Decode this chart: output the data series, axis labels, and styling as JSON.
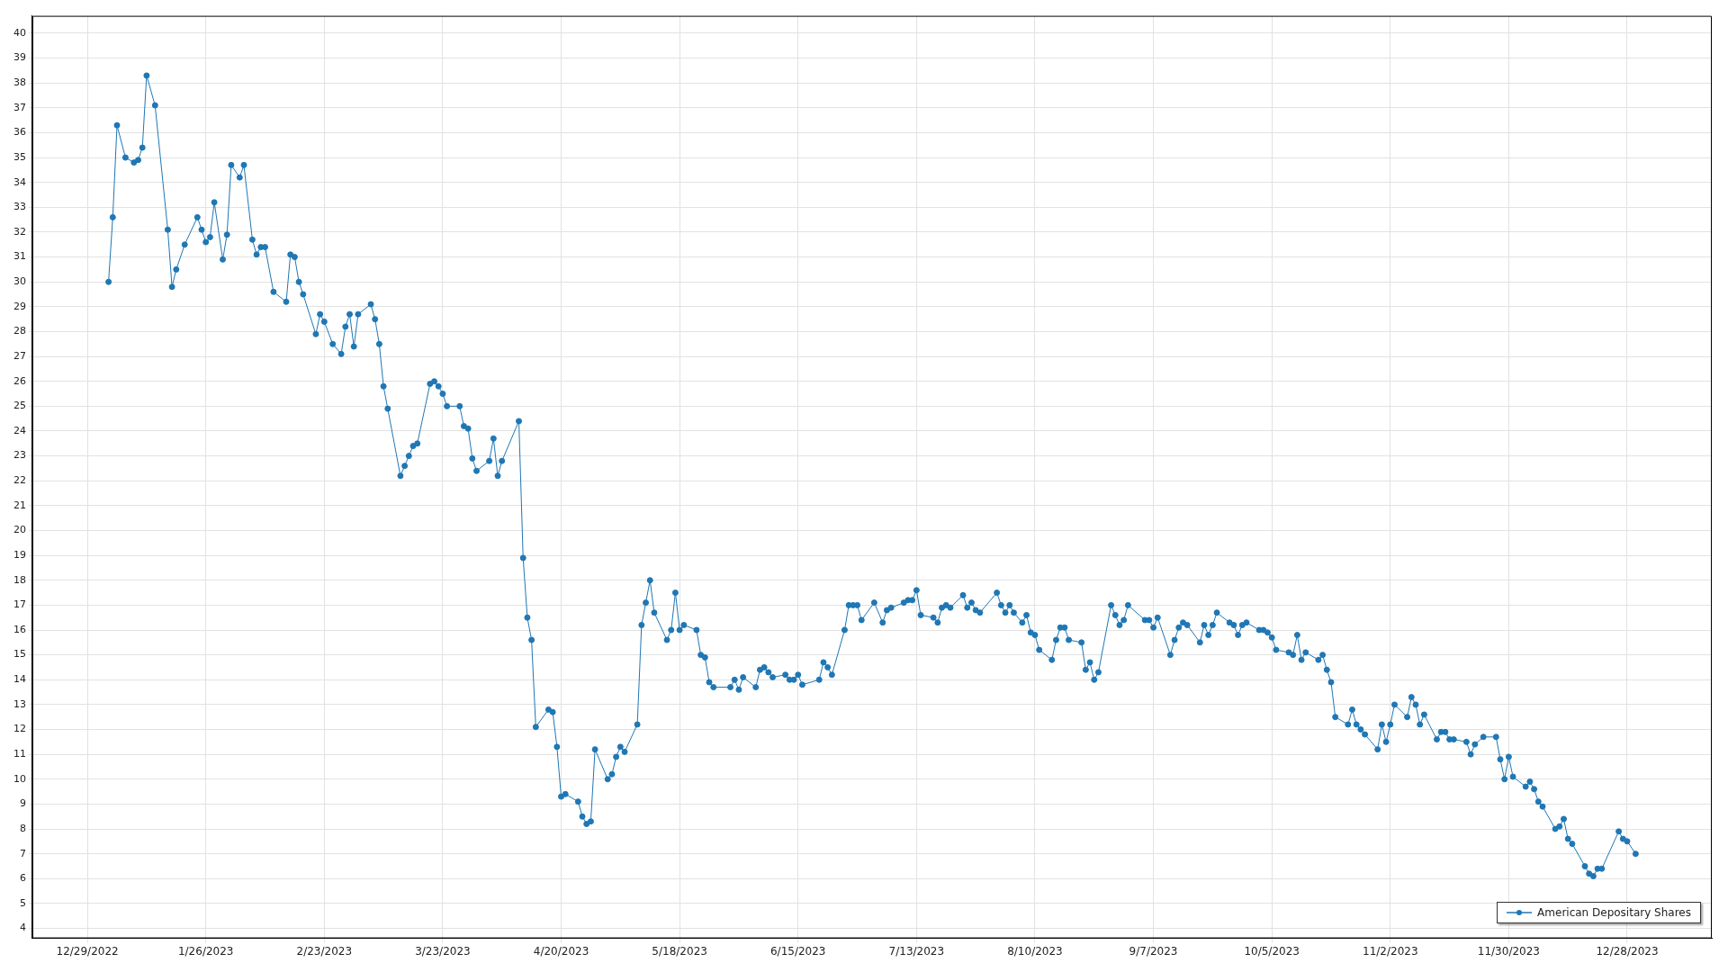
{
  "chart_data": {
    "type": "line",
    "legend": "bottom right",
    "grid": true,
    "marker": "circle",
    "xlim": [
      "2022-12-16",
      "2024-01-17"
    ],
    "xticks": [
      {
        "value": "2022-12-29",
        "label": "12/29/2022"
      },
      {
        "value": "2023-01-26",
        "label": "1/26/2023"
      },
      {
        "value": "2023-02-23",
        "label": "2/23/2023"
      },
      {
        "value": "2023-03-23",
        "label": "3/23/2023"
      },
      {
        "value": "2023-04-20",
        "label": "4/20/2023"
      },
      {
        "value": "2023-05-18",
        "label": "5/18/2023"
      },
      {
        "value": "2023-06-15",
        "label": "6/15/2023"
      },
      {
        "value": "2023-07-13",
        "label": "7/13/2023"
      },
      {
        "value": "2023-08-10",
        "label": "8/10/2023"
      },
      {
        "value": "2023-09-07",
        "label": "9/7/2023"
      },
      {
        "value": "2023-10-05",
        "label": "10/5/2023"
      },
      {
        "value": "2023-11-02",
        "label": "11/2/2023"
      },
      {
        "value": "2023-11-30",
        "label": "11/30/2023"
      },
      {
        "value": "2023-12-28",
        "label": "12/28/2023"
      }
    ],
    "ylim": [
      3.6,
      40.7
    ],
    "yticks": [
      4,
      5,
      6,
      7,
      8,
      9,
      10,
      11,
      12,
      13,
      14,
      15,
      16,
      17,
      18,
      19,
      20,
      21,
      22,
      23,
      24,
      25,
      26,
      27,
      28,
      29,
      30,
      31,
      32,
      33,
      34,
      35,
      36,
      37,
      38,
      39,
      40
    ],
    "series": [
      {
        "name": "American Depositary Shares",
        "color": "#1f77b4",
        "x": [
          "2023-01-03",
          "2023-01-04",
          "2023-01-05",
          "2023-01-07",
          "2023-01-09",
          "2023-01-10",
          "2023-01-11",
          "2023-01-12",
          "2023-01-14",
          "2023-01-17",
          "2023-01-18",
          "2023-01-19",
          "2023-01-21",
          "2023-01-24",
          "2023-01-25",
          "2023-01-26",
          "2023-01-27",
          "2023-01-28",
          "2023-01-30",
          "2023-01-31",
          "2023-02-01",
          "2023-02-03",
          "2023-02-04",
          "2023-02-06",
          "2023-02-07",
          "2023-02-08",
          "2023-02-09",
          "2023-02-11",
          "2023-02-14",
          "2023-02-15",
          "2023-02-16",
          "2023-02-17",
          "2023-02-18",
          "2023-02-21",
          "2023-02-22",
          "2023-02-23",
          "2023-02-25",
          "2023-02-27",
          "2023-02-28",
          "2023-03-01",
          "2023-03-02",
          "2023-03-03",
          "2023-03-06",
          "2023-03-07",
          "2023-03-08",
          "2023-03-09",
          "2023-03-10",
          "2023-03-13",
          "2023-03-14",
          "2023-03-15",
          "2023-03-16",
          "2023-03-17",
          "2023-03-20",
          "2023-03-21",
          "2023-03-22",
          "2023-03-23",
          "2023-03-24",
          "2023-03-27",
          "2023-03-28",
          "2023-03-29",
          "2023-03-30",
          "2023-03-31",
          "2023-04-03",
          "2023-04-04",
          "2023-04-05",
          "2023-04-06",
          "2023-04-10",
          "2023-04-11",
          "2023-04-12",
          "2023-04-13",
          "2023-04-14",
          "2023-04-17",
          "2023-04-18",
          "2023-04-19",
          "2023-04-20",
          "2023-04-21",
          "2023-04-24",
          "2023-04-25",
          "2023-04-26",
          "2023-04-27",
          "2023-04-28",
          "2023-05-01",
          "2023-05-02",
          "2023-05-03",
          "2023-05-04",
          "2023-05-05",
          "2023-05-08",
          "2023-05-09",
          "2023-05-10",
          "2023-05-11",
          "2023-05-12",
          "2023-05-15",
          "2023-05-16",
          "2023-05-17",
          "2023-05-18",
          "2023-05-19",
          "2023-05-22",
          "2023-05-23",
          "2023-05-24",
          "2023-05-25",
          "2023-05-26",
          "2023-05-30",
          "2023-05-31",
          "2023-06-01",
          "2023-06-02",
          "2023-06-05",
          "2023-06-06",
          "2023-06-07",
          "2023-06-08",
          "2023-06-09",
          "2023-06-12",
          "2023-06-13",
          "2023-06-14",
          "2023-06-15",
          "2023-06-16",
          "2023-06-20",
          "2023-06-21",
          "2023-06-22",
          "2023-06-23",
          "2023-06-26",
          "2023-06-27",
          "2023-06-28",
          "2023-06-29",
          "2023-06-30",
          "2023-07-03",
          "2023-07-05",
          "2023-07-06",
          "2023-07-07",
          "2023-07-10",
          "2023-07-11",
          "2023-07-12",
          "2023-07-13",
          "2023-07-14",
          "2023-07-17",
          "2023-07-18",
          "2023-07-19",
          "2023-07-20",
          "2023-07-21",
          "2023-07-24",
          "2023-07-25",
          "2023-07-26",
          "2023-07-27",
          "2023-07-28",
          "2023-08-01",
          "2023-08-02",
          "2023-08-03",
          "2023-08-04",
          "2023-08-05",
          "2023-08-07",
          "2023-08-08",
          "2023-08-09",
          "2023-08-10",
          "2023-08-11",
          "2023-08-14",
          "2023-08-15",
          "2023-08-16",
          "2023-08-17",
          "2023-08-18",
          "2023-08-21",
          "2023-08-22",
          "2023-08-23",
          "2023-08-24",
          "2023-08-25",
          "2023-08-28",
          "2023-08-29",
          "2023-08-30",
          "2023-08-31",
          "2023-09-01",
          "2023-09-05",
          "2023-09-06",
          "2023-09-07",
          "2023-09-08",
          "2023-09-11",
          "2023-09-12",
          "2023-09-13",
          "2023-09-14",
          "2023-09-15",
          "2023-09-18",
          "2023-09-19",
          "2023-09-20",
          "2023-09-21",
          "2023-09-22",
          "2023-09-25",
          "2023-09-26",
          "2023-09-27",
          "2023-09-28",
          "2023-09-29",
          "2023-10-02",
          "2023-10-03",
          "2023-10-04",
          "2023-10-05",
          "2023-10-06",
          "2023-10-09",
          "2023-10-10",
          "2023-10-11",
          "2023-10-12",
          "2023-10-13",
          "2023-10-16",
          "2023-10-17",
          "2023-10-18",
          "2023-10-19",
          "2023-10-20",
          "2023-10-23",
          "2023-10-24",
          "2023-10-25",
          "2023-10-26",
          "2023-10-27",
          "2023-10-30",
          "2023-10-31",
          "2023-11-01",
          "2023-11-02",
          "2023-11-03",
          "2023-11-06",
          "2023-11-07",
          "2023-11-08",
          "2023-11-09",
          "2023-11-10",
          "2023-11-13",
          "2023-11-14",
          "2023-11-15",
          "2023-11-16",
          "2023-11-17",
          "2023-11-20",
          "2023-11-21",
          "2023-11-22",
          "2023-11-24",
          "2023-11-27",
          "2023-11-28",
          "2023-11-29",
          "2023-11-30",
          "2023-12-01",
          "2023-12-04",
          "2023-12-05",
          "2023-12-06",
          "2023-12-07",
          "2023-12-08",
          "2023-12-11",
          "2023-12-12",
          "2023-12-13",
          "2023-12-14",
          "2023-12-15",
          "2023-12-18",
          "2023-12-19",
          "2023-12-20",
          "2023-12-21",
          "2023-12-22",
          "2023-12-26",
          "2023-12-27",
          "2023-12-28",
          "2023-12-30"
        ],
        "values": [
          30.0,
          32.6,
          36.3,
          35.0,
          34.8,
          34.9,
          35.4,
          38.3,
          37.1,
          32.1,
          29.8,
          30.5,
          31.5,
          32.6,
          32.1,
          31.6,
          31.8,
          33.2,
          30.9,
          31.9,
          34.7,
          34.2,
          34.7,
          31.7,
          31.1,
          31.4,
          31.4,
          29.6,
          29.2,
          31.1,
          31.0,
          30.0,
          29.5,
          27.9,
          28.7,
          28.4,
          27.5,
          27.1,
          28.2,
          28.7,
          27.4,
          28.7,
          29.1,
          28.5,
          27.5,
          25.8,
          24.9,
          22.2,
          22.6,
          23.0,
          23.4,
          23.5,
          25.9,
          26.0,
          25.8,
          25.5,
          25.0,
          25.0,
          24.2,
          24.1,
          22.9,
          22.4,
          22.8,
          23.7,
          22.2,
          22.8,
          24.4,
          18.9,
          16.5,
          15.6,
          12.1,
          12.8,
          12.7,
          11.3,
          9.3,
          9.4,
          9.1,
          8.5,
          8.2,
          8.3,
          11.2,
          10.0,
          10.2,
          10.9,
          11.3,
          11.1,
          12.2,
          16.2,
          17.1,
          18.0,
          16.7,
          15.6,
          16.0,
          17.5,
          16.0,
          16.2,
          16.0,
          15.0,
          14.9,
          13.9,
          13.7,
          13.7,
          14.0,
          13.6,
          14.1,
          13.7,
          14.4,
          14.5,
          14.3,
          14.1,
          14.2,
          14.0,
          14.0,
          14.2,
          13.8,
          14.0,
          14.7,
          14.5,
          14.2,
          16.0,
          17.0,
          17.0,
          17.0,
          16.4,
          17.1,
          16.3,
          16.8,
          16.9,
          17.1,
          17.2,
          17.2,
          17.6,
          16.6,
          16.5,
          16.3,
          16.9,
          17.0,
          16.9,
          17.4,
          16.9,
          17.1,
          16.8,
          16.7,
          17.5,
          17.0,
          16.7,
          17.0,
          16.7,
          16.3,
          16.6,
          15.9,
          15.8,
          15.2,
          14.8,
          15.6,
          16.1,
          16.1,
          15.6,
          15.5,
          14.4,
          14.7,
          14.0,
          14.3,
          17.0,
          16.6,
          16.2,
          16.4,
          17.0,
          16.4,
          16.4,
          16.1,
          16.5,
          15.0,
          15.6,
          16.1,
          16.3,
          16.2,
          15.5,
          16.2,
          15.8,
          16.2,
          16.7,
          16.3,
          16.2,
          15.8,
          16.2,
          16.3,
          16.0,
          16.0,
          15.9,
          15.7,
          15.2,
          15.1,
          15.0,
          15.8,
          14.8,
          15.1,
          14.8,
          15.0,
          14.4,
          13.9,
          12.5,
          12.2,
          12.8,
          12.2,
          12.0,
          11.8,
          11.2,
          12.2,
          11.5,
          12.2,
          13.0,
          12.5,
          13.3,
          13.0,
          12.2,
          12.6,
          11.6,
          11.9,
          11.9,
          11.6,
          11.6,
          11.5,
          11.0,
          11.4,
          11.7,
          11.7,
          10.8,
          10.0,
          10.9,
          10.1,
          9.7,
          9.9,
          9.6,
          9.1,
          8.9,
          8.0,
          8.1,
          8.4,
          7.6,
          7.4,
          6.5,
          6.2,
          6.1,
          6.4,
          6.4,
          7.9,
          7.6,
          7.5,
          7.0
        ]
      }
    ]
  }
}
